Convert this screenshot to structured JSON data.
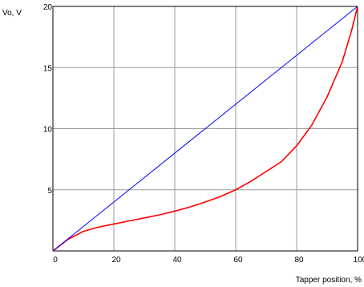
{
  "chart_data": {
    "type": "line",
    "xlabel": "Tapper position, %",
    "ylabel": "Vo, V",
    "xlim": [
      0,
      100
    ],
    "ylim": [
      0,
      20
    ],
    "xticks": [
      "0",
      "20",
      "40",
      "60",
      "80",
      "100"
    ],
    "yticks": [
      "5",
      "10",
      "15",
      "20"
    ],
    "grid": true,
    "series": [
      {
        "color": "#0000ff",
        "x": [
          0,
          100
        ],
        "y": [
          0,
          20
        ]
      },
      {
        "color": "#ff0000",
        "x": [
          0,
          5,
          10,
          15,
          20,
          25,
          30,
          35,
          40,
          45,
          50,
          55,
          60,
          65,
          70,
          75,
          80,
          85,
          90,
          95,
          98,
          100
        ],
        "y": [
          0,
          0.95,
          1.6,
          1.95,
          2.2,
          2.45,
          2.7,
          2.95,
          3.25,
          3.6,
          4.0,
          4.45,
          5.0,
          5.7,
          6.5,
          7.3,
          8.6,
          10.3,
          12.6,
          15.5,
          18.0,
          20.0
        ]
      }
    ]
  }
}
